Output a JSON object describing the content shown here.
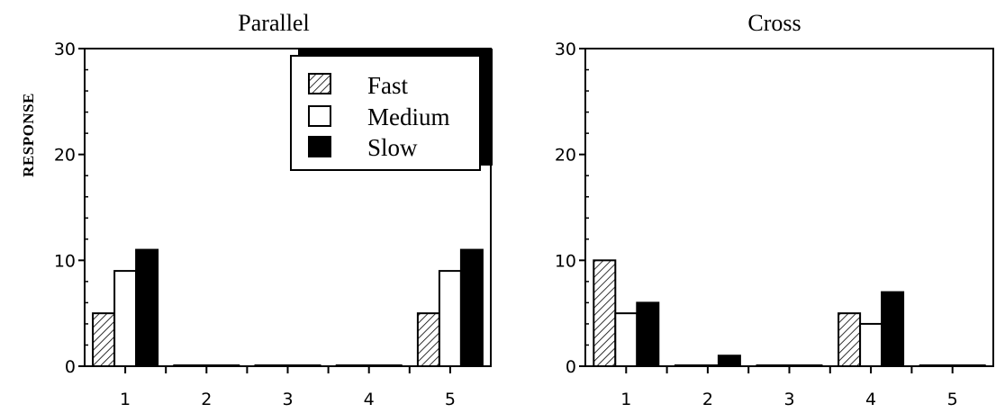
{
  "colors": {
    "fast": "hatched",
    "medium": "#ffffff",
    "slow": "#000000",
    "axis": "#000000"
  },
  "legend": {
    "placement": "top-right",
    "items": [
      "Fast",
      "Medium",
      "Slow"
    ]
  },
  "chart_data": [
    {
      "type": "bar",
      "title": "Parallel",
      "xlabel": "",
      "ylabel": "RESPONSE",
      "ylim": [
        0,
        30
      ],
      "yticks": [
        0,
        10,
        20,
        30
      ],
      "categories": [
        "1",
        "2",
        "3",
        "4",
        "5"
      ],
      "grid": false,
      "series": [
        {
          "name": "Fast",
          "values": [
            5,
            0,
            0,
            0,
            5
          ]
        },
        {
          "name": "Medium",
          "values": [
            9,
            0,
            0,
            0,
            9
          ]
        },
        {
          "name": "Slow",
          "values": [
            11,
            0,
            0,
            0,
            11
          ]
        }
      ]
    },
    {
      "type": "bar",
      "title": "Cross",
      "xlabel": "",
      "ylabel": "",
      "ylim": [
        0,
        30
      ],
      "yticks": [
        0,
        10,
        20,
        30
      ],
      "categories": [
        "1",
        "2",
        "3",
        "4",
        "5"
      ],
      "grid": false,
      "series": [
        {
          "name": "Fast",
          "values": [
            10,
            0,
            0,
            5,
            0
          ]
        },
        {
          "name": "Medium",
          "values": [
            5,
            0,
            0,
            4,
            0
          ]
        },
        {
          "name": "Slow",
          "values": [
            6,
            1,
            0,
            7,
            0
          ]
        }
      ]
    }
  ]
}
